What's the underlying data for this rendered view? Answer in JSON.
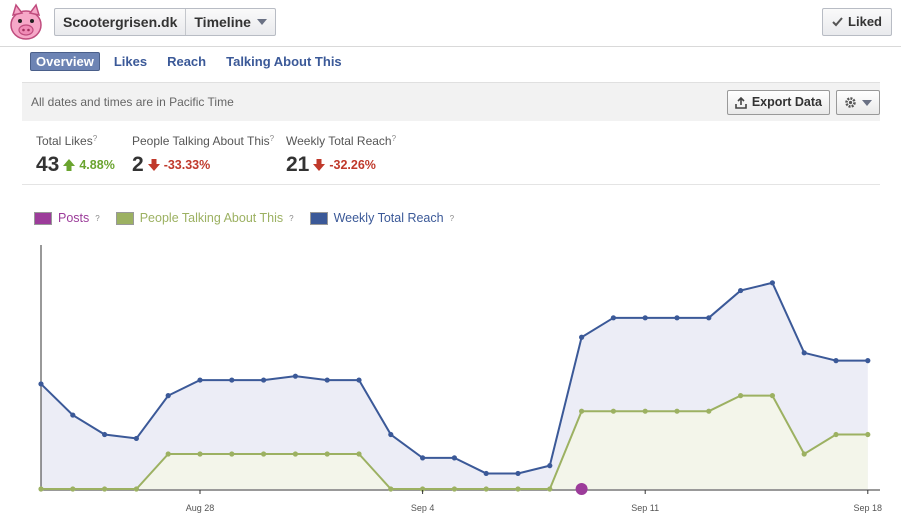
{
  "header": {
    "page_name": "Scootergrisen.dk",
    "view": "Timeline",
    "liked_label": "Liked"
  },
  "tabs": [
    "Overview",
    "Likes",
    "Reach",
    "Talking About This"
  ],
  "info_bar": {
    "text": "All dates and times are in Pacific Time",
    "export_label": "Export Data"
  },
  "stats": [
    {
      "label": "Total Likes",
      "value": "43",
      "change": "4.88%",
      "direction": "up"
    },
    {
      "label": "People Talking About This",
      "value": "2",
      "change": "-33.33%",
      "direction": "down"
    },
    {
      "label": "Weekly Total Reach",
      "value": "21",
      "change": "-32.26%",
      "direction": "down"
    }
  ],
  "legend": [
    {
      "name": "Posts",
      "color": "#9c3c9a"
    },
    {
      "name": "People Talking About This",
      "color": "#9cb162"
    },
    {
      "name": "Weekly Total Reach",
      "color": "#3b5998"
    }
  ],
  "chart_data": {
    "type": "area",
    "x_tick_labels": [
      "Aug 28",
      "Sep 4",
      "Sep 11",
      "Sep 18"
    ],
    "x_tick_index": [
      5,
      12,
      19,
      26
    ],
    "ylim": [
      0,
      64
    ],
    "series": [
      {
        "name": "Weekly Total Reach",
        "color": "#3b5998",
        "values": [
          27,
          19,
          14,
          13,
          24,
          28,
          28,
          28,
          29,
          28,
          28,
          14,
          8,
          8,
          4,
          4,
          6,
          39,
          44,
          44,
          44,
          44,
          51,
          53,
          35,
          33,
          33
        ]
      },
      {
        "name": "People Talking About This",
        "color": "#9cb162",
        "values": [
          0,
          0,
          0,
          0,
          9,
          9,
          9,
          9,
          9,
          9,
          9,
          0,
          0,
          0,
          0,
          0,
          0,
          20,
          20,
          20,
          20,
          20,
          24,
          24,
          9,
          14,
          14
        ]
      },
      {
        "name": "Posts",
        "color": "#9c3c9a",
        "points": [
          {
            "index": 17,
            "value": 0
          }
        ]
      }
    ]
  }
}
